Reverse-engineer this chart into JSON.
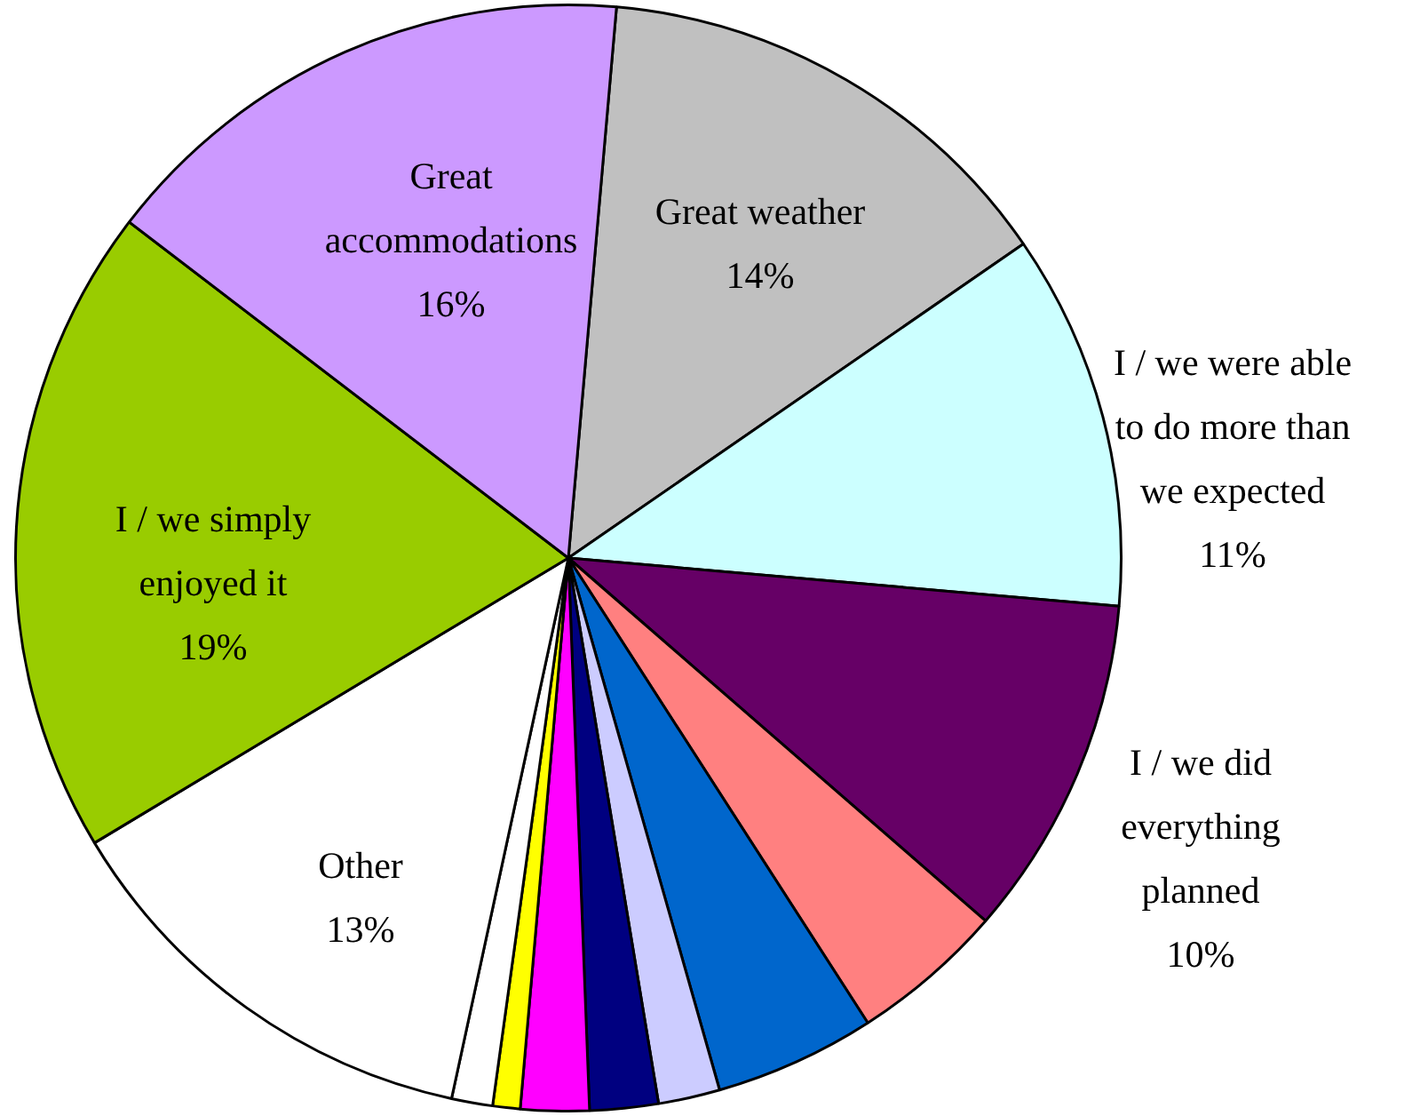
{
  "chart_data": {
    "type": "pie",
    "categories": [
      "Great weather",
      "I / we were able to do more than we expected",
      "I / we did everything planned",
      null,
      null,
      null,
      null,
      null,
      null,
      null,
      "Other",
      "I / we simply enjoyed it",
      "Great accommodations"
    ],
    "values": [
      14,
      11,
      10,
      4.5,
      4.7,
      1.8,
      2,
      2,
      0.8,
      1.2,
      13,
      19,
      16
    ],
    "colors": [
      "#c0c0c0",
      "#ccffff",
      "#660066",
      "#ff8080",
      "#0066cc",
      "#ccccff",
      "#000080",
      "#ff00ff",
      "#ffff00",
      "#ffffff",
      "#ffffff",
      "#99cc00",
      "#cc99ff"
    ],
    "value_labels": [
      "14%",
      "11%",
      "10%",
      null,
      null,
      null,
      null,
      null,
      null,
      null,
      "13%",
      "19%",
      "16%"
    ]
  }
}
